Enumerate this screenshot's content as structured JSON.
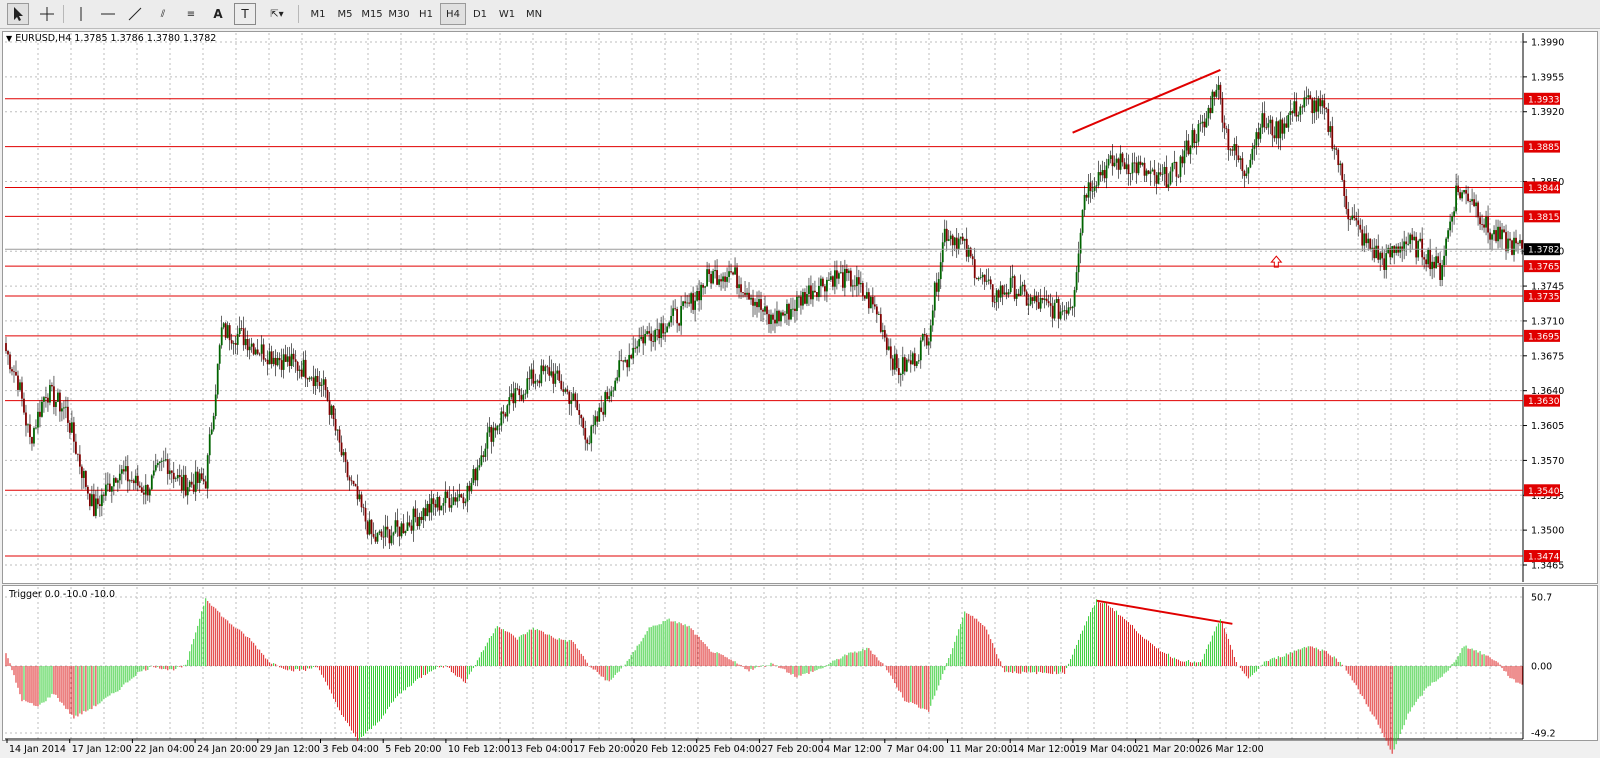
{
  "toolbar": {
    "tools": [
      {
        "name": "cursor-tool-icon"
      },
      {
        "name": "crosshair-tool-icon"
      },
      {
        "name": "vertical-line-tool-icon"
      },
      {
        "name": "horizontal-line-tool-icon"
      },
      {
        "name": "trendline-tool-icon"
      },
      {
        "name": "equidistant-channel-tool-icon",
        "glyph": "⫽"
      },
      {
        "name": "fibonacci-tool-icon",
        "glyph": "≡"
      },
      {
        "name": "text-tool-icon",
        "glyph": "A"
      },
      {
        "name": "text-label-tool-icon",
        "glyph": "T"
      },
      {
        "name": "arrow-shapes-tool-icon",
        "glyph": "⇱▾"
      }
    ],
    "timeframes": [
      "M1",
      "M5",
      "M15",
      "M30",
      "H1",
      "H4",
      "D1",
      "W1",
      "MN"
    ],
    "active_timeframe": "H4"
  },
  "chart": {
    "symbol_info": "EURUSD,H4  1.3785 1.3786 1.3780 1.3782",
    "price_ticks": [
      "1.3990",
      "1.3955",
      "1.3920",
      "1.3850",
      "1.3780",
      "1.3745",
      "1.3710",
      "1.3675",
      "1.3640",
      "1.3605",
      "1.3570",
      "1.3535",
      "1.3500",
      "1.3465"
    ],
    "levels": [
      "1.3933",
      "1.3885",
      "1.3844",
      "1.3815",
      "1.3765",
      "1.3735",
      "1.3695",
      "1.3630",
      "1.3540",
      "1.3474"
    ],
    "current_price": "1.3782",
    "level_color": "#e00000",
    "bull_color": "#006400",
    "bear_color": "#800000"
  },
  "indicator": {
    "name": "Trigger 0.0 -10.0 -10.0",
    "ticks": [
      "50.7",
      "0.00",
      "-49.2"
    ],
    "positive_color": "#33cc33",
    "negative_color": "#dd2222"
  },
  "time_axis": {
    "labels": [
      "14 Jan 2014",
      "17 Jan 12:00",
      "22 Jan 04:00",
      "24 Jan 20:00",
      "29 Jan 12:00",
      "3 Feb 04:00",
      "5 Feb 20:00",
      "10 Feb 12:00",
      "13 Feb 04:00",
      "17 Feb 20:00",
      "20 Feb 12:00",
      "25 Feb 04:00",
      "27 Feb 20:00",
      "4 Mar 12:00",
      "7 Mar 04:00",
      "11 Mar 20:00",
      "14 Mar 12:00",
      "19 Mar 04:00",
      "21 Mar 20:00",
      "26 Mar 12:00"
    ]
  },
  "chart_data": {
    "type": "candlestick",
    "symbol": "EURUSD",
    "timeframe": "H4",
    "ohlc_last": {
      "open": 1.3785,
      "high": 1.3786,
      "low": 1.378,
      "close": 1.3782
    },
    "y_range": [
      1.3465,
      1.399
    ],
    "anchors": [
      [
        0,
        1.368
      ],
      [
        6,
        1.365
      ],
      [
        12,
        1.359
      ],
      [
        20,
        1.364
      ],
      [
        30,
        1.362
      ],
      [
        38,
        1.356
      ],
      [
        44,
        1.352
      ],
      [
        56,
        1.356
      ],
      [
        70,
        1.354
      ],
      [
        80,
        1.357
      ],
      [
        88,
        1.3545
      ],
      [
        100,
        1.355
      ],
      [
        108,
        1.37
      ],
      [
        118,
        1.3695
      ],
      [
        128,
        1.368
      ],
      [
        140,
        1.367
      ],
      [
        152,
        1.366
      ],
      [
        160,
        1.364
      ],
      [
        170,
        1.356
      ],
      [
        178,
        1.352
      ],
      [
        184,
        1.349
      ],
      [
        196,
        1.35
      ],
      [
        210,
        1.352
      ],
      [
        220,
        1.353
      ],
      [
        232,
        1.354
      ],
      [
        240,
        1.359
      ],
      [
        250,
        1.362
      ],
      [
        262,
        1.365
      ],
      [
        272,
        1.366
      ],
      [
        284,
        1.363
      ],
      [
        292,
        1.359
      ],
      [
        304,
        1.365
      ],
      [
        316,
        1.369
      ],
      [
        328,
        1.3705
      ],
      [
        340,
        1.372
      ],
      [
        352,
        1.3755
      ],
      [
        362,
        1.376
      ],
      [
        372,
        1.374
      ],
      [
        382,
        1.371
      ],
      [
        392,
        1.372
      ],
      [
        402,
        1.374
      ],
      [
        414,
        1.3755
      ],
      [
        424,
        1.375
      ],
      [
        436,
        1.372
      ],
      [
        446,
        1.366
      ],
      [
        454,
        1.367
      ],
      [
        462,
        1.37
      ],
      [
        470,
        1.38
      ],
      [
        478,
        1.379
      ],
      [
        486,
        1.376
      ],
      [
        494,
        1.3735
      ],
      [
        504,
        1.3745
      ],
      [
        512,
        1.373
      ],
      [
        520,
        1.3725
      ],
      [
        528,
        1.372
      ],
      [
        534,
        1.373
      ],
      [
        540,
        1.384
      ],
      [
        548,
        1.386
      ],
      [
        556,
        1.387
      ],
      [
        566,
        1.3865
      ],
      [
        576,
        1.385
      ],
      [
        586,
        1.386
      ],
      [
        594,
        1.3895
      ],
      [
        600,
        1.3905
      ],
      [
        606,
        1.395
      ],
      [
        612,
        1.389
      ],
      [
        620,
        1.386
      ],
      [
        628,
        1.391
      ],
      [
        636,
        1.39
      ],
      [
        644,
        1.392
      ],
      [
        652,
        1.393
      ],
      [
        660,
        1.392
      ],
      [
        666,
        1.388
      ],
      [
        672,
        1.382
      ],
      [
        680,
        1.379
      ],
      [
        690,
        1.377
      ],
      [
        700,
        1.379
      ],
      [
        710,
        1.378
      ],
      [
        718,
        1.376
      ],
      [
        726,
        1.384
      ],
      [
        734,
        1.3835
      ],
      [
        742,
        1.38
      ],
      [
        750,
        1.379
      ],
      [
        758,
        1.3782
      ]
    ],
    "levels": [
      1.3933,
      1.3885,
      1.3844,
      1.3815,
      1.3765,
      1.3735,
      1.3695,
      1.363,
      1.354,
      1.3474
    ],
    "current_price": 1.3782,
    "annotations": [
      {
        "type": "trendline",
        "pane": "price",
        "from": [
          534,
          1.3899
        ],
        "to": [
          608,
          1.3962
        ]
      },
      {
        "type": "trendline",
        "pane": "indicator",
        "from": [
          546,
          48
        ],
        "to": [
          614,
          31
        ]
      },
      {
        "type": "arrow",
        "pane": "price",
        "at": [
          636,
          1.3769
        ]
      }
    ],
    "indicator": {
      "name": "Trigger",
      "y_range": [
        -49.2,
        50.7
      ],
      "anchors": [
        [
          0,
          10
        ],
        [
          8,
          -25
        ],
        [
          16,
          -30
        ],
        [
          24,
          -20
        ],
        [
          34,
          -38
        ],
        [
          44,
          -30
        ],
        [
          56,
          -18
        ],
        [
          66,
          -5
        ],
        [
          74,
          0
        ],
        [
          82,
          -3
        ],
        [
          90,
          0
        ],
        [
          100,
          50
        ],
        [
          110,
          34
        ],
        [
          122,
          20
        ],
        [
          132,
          3
        ],
        [
          142,
          -3
        ],
        [
          150,
          -3
        ],
        [
          156,
          0
        ],
        [
          166,
          -30
        ],
        [
          176,
          -55
        ],
        [
          186,
          -42
        ],
        [
          196,
          -22
        ],
        [
          206,
          -10
        ],
        [
          214,
          -2
        ],
        [
          220,
          0
        ],
        [
          230,
          -12
        ],
        [
          242,
          20
        ],
        [
          246,
          30
        ],
        [
          256,
          20
        ],
        [
          264,
          28
        ],
        [
          276,
          20
        ],
        [
          284,
          18
        ],
        [
          292,
          0
        ],
        [
          302,
          -12
        ],
        [
          312,
          5
        ],
        [
          322,
          28
        ],
        [
          332,
          34
        ],
        [
          342,
          29
        ],
        [
          352,
          12
        ],
        [
          362,
          5
        ],
        [
          372,
          -3
        ],
        [
          384,
          2
        ],
        [
          396,
          -8
        ],
        [
          408,
          -2
        ],
        [
          420,
          8
        ],
        [
          432,
          13
        ],
        [
          440,
          0
        ],
        [
          450,
          -25
        ],
        [
          462,
          -33
        ],
        [
          472,
          5
        ],
        [
          480,
          40
        ],
        [
          490,
          30
        ],
        [
          500,
          -4
        ],
        [
          510,
          -5
        ],
        [
          520,
          -5
        ],
        [
          530,
          -5
        ],
        [
          540,
          30
        ],
        [
          546,
          48
        ],
        [
          552,
          45
        ],
        [
          562,
          32
        ],
        [
          574,
          15
        ],
        [
          586,
          5
        ],
        [
          598,
          2
        ],
        [
          608,
          35
        ],
        [
          616,
          3
        ],
        [
          622,
          -10
        ],
        [
          630,
          3
        ],
        [
          640,
          8
        ],
        [
          652,
          15
        ],
        [
          662,
          10
        ],
        [
          670,
          0
        ],
        [
          678,
          -20
        ],
        [
          686,
          -40
        ],
        [
          694,
          -65
        ],
        [
          702,
          -35
        ],
        [
          712,
          -15
        ],
        [
          722,
          -4
        ],
        [
          730,
          15
        ],
        [
          738,
          10
        ],
        [
          746,
          4
        ],
        [
          754,
          -10
        ],
        [
          760,
          -14
        ]
      ]
    },
    "x_axis_labels": [
      "14 Jan 2014",
      "17 Jan 12:00",
      "22 Jan 04:00",
      "24 Jan 20:00",
      "29 Jan 12:00",
      "3 Feb 04:00",
      "5 Feb 20:00",
      "10 Feb 12:00",
      "13 Feb 04:00",
      "17 Feb 20:00",
      "20 Feb 12:00",
      "25 Feb 04:00",
      "27 Feb 20:00",
      "4 Mar 12:00",
      "7 Mar 04:00",
      "11 Mar 20:00",
      "14 Mar 12:00",
      "19 Mar 04:00",
      "21 Mar 20:00",
      "26 Mar 12:00"
    ]
  }
}
